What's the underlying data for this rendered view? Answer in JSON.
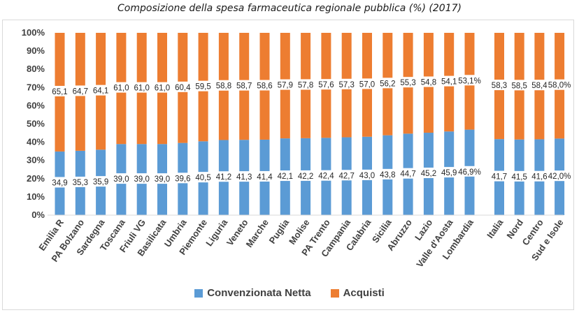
{
  "chart_data": {
    "type": "bar",
    "stacked": true,
    "title": "Composizione della spesa farmaceutica regionale pubblica (%) (2017)",
    "ylim": [
      0,
      100
    ],
    "yticks": [
      "0%",
      "10%",
      "20%",
      "30%",
      "40%",
      "50%",
      "60%",
      "70%",
      "80%",
      "90%",
      "100%"
    ],
    "grid": false,
    "legend_position": "bottom",
    "groups": [
      {
        "categories": [
          "Emilia R",
          "PA Bolzano",
          "Sardegna",
          "Toscana",
          "Friuli VG",
          "Basilicata",
          "Umbria",
          "Piemonte",
          "Liguria",
          "Veneto",
          "Marche",
          "Puglia",
          "Molise",
          "PA Trento",
          "Campania",
          "Calabria",
          "Sicilia",
          "Abruzzo",
          "Lazio",
          "Valle d'Aosta",
          "Lombardia"
        ],
        "series": [
          {
            "name": "Convenzionata Netta",
            "values": [
              34.9,
              35.3,
              35.9,
              39.0,
              39.0,
              39.0,
              39.6,
              40.5,
              41.2,
              41.3,
              41.4,
              42.1,
              42.2,
              42.4,
              42.7,
              43.0,
              43.8,
              44.7,
              45.2,
              45.9,
              46.9
            ]
          },
          {
            "name": "Acquisti",
            "values": [
              65.1,
              64.7,
              64.1,
              61.0,
              61.0,
              61.0,
              60.4,
              59.5,
              58.8,
              58.7,
              58.6,
              57.9,
              57.8,
              57.6,
              57.3,
              57.0,
              56.2,
              55.3,
              54.8,
              54.1,
              53.1
            ]
          }
        ],
        "labels": {
          "convenzionata": [
            "34,9",
            "35,3",
            "35,9",
            "39,0",
            "39,0",
            "39,0",
            "39,6",
            "40,5",
            "41,2",
            "41,3",
            "41,4",
            "42,1",
            "42,2",
            "42,4",
            "42,7",
            "43,0",
            "43,8",
            "44,7",
            "45,2",
            "45,9",
            "46,9%"
          ],
          "acquisti": [
            "65,1",
            "64,7",
            "64,1",
            "61,0",
            "61,0",
            "61,0",
            "60,4",
            "59,5",
            "58,8",
            "58,7",
            "58,6",
            "57,9",
            "57,8",
            "57,6",
            "57,3",
            "57,0",
            "56,2",
            "55,3",
            "54,8",
            "54,1",
            "53,1%"
          ]
        }
      },
      {
        "categories": [
          "Italia",
          "Nord",
          "Centro",
          "Sud e Isole"
        ],
        "series": [
          {
            "name": "Convenzionata Netta",
            "values": [
              41.7,
              41.5,
              41.6,
              42.0
            ]
          },
          {
            "name": "Acquisti",
            "values": [
              58.3,
              58.5,
              58.4,
              58.0
            ]
          }
        ],
        "labels": {
          "convenzionata": [
            "41,7",
            "41,5",
            "41,6",
            "42,0%"
          ],
          "acquisti": [
            "58,3",
            "58,5",
            "58,4",
            "58,0%"
          ]
        }
      }
    ],
    "colors": {
      "Convenzionata Netta": "#5b9bd5",
      "Acquisti": "#ed7d31"
    }
  },
  "legend": {
    "items": [
      {
        "label": "Convenzionata Netta",
        "color": "#5b9bd5"
      },
      {
        "label": "Acquisti",
        "color": "#ed7d31"
      }
    ]
  }
}
